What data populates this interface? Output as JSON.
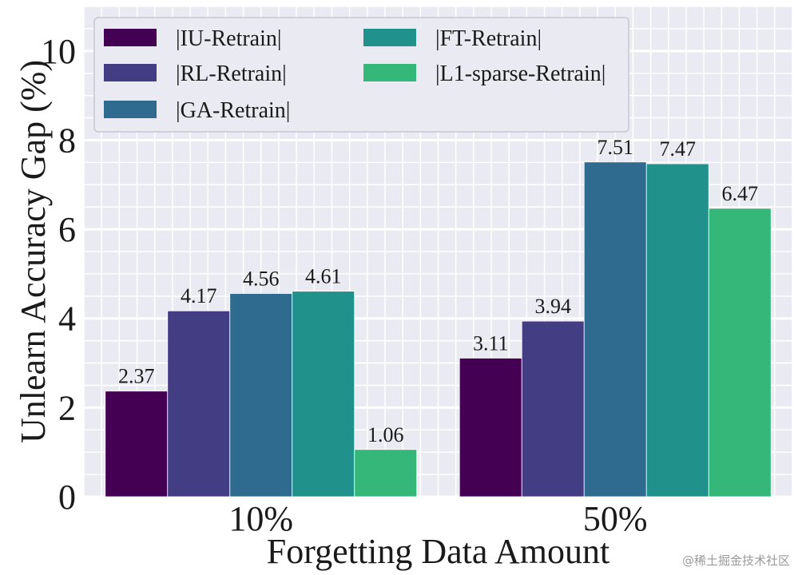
{
  "chart_data": {
    "type": "bar",
    "categories": [
      "10%",
      "50%"
    ],
    "series": [
      {
        "name": "|IU-Retrain|",
        "color": "#440154",
        "values": [
          2.37,
          3.11
        ]
      },
      {
        "name": "|RL-Retrain|",
        "color": "#433d84",
        "values": [
          4.17,
          3.94
        ]
      },
      {
        "name": "|GA-Retrain|",
        "color": "#2f6b8e",
        "values": [
          4.56,
          7.51
        ]
      },
      {
        "name": "|FT-Retrain|",
        "color": "#21918c",
        "values": [
          4.61,
          7.47
        ]
      },
      {
        "name": "|L1-sparse-Retrain|",
        "color": "#35b779",
        "values": [
          1.06,
          6.47
        ]
      }
    ],
    "value_labels": [
      [
        "2.37",
        "3.11"
      ],
      [
        "4.17",
        "3.94"
      ],
      [
        "4.56",
        "7.51"
      ],
      [
        "4.61",
        "7.47"
      ],
      [
        "1.06",
        "6.47"
      ]
    ],
    "xlabel": "Forgetting Data Amount",
    "ylabel": "Unlearn Accuracy Gap (%)",
    "ylim": [
      0,
      11
    ],
    "yticks": [
      0,
      2,
      4,
      6,
      8,
      10
    ],
    "ytick_labels": [
      "0",
      "2",
      "4",
      "6",
      "8",
      "10"
    ],
    "grid": true,
    "legend_position": "top-left",
    "background_color": "#eaeaf2",
    "grid_color": "#ffffff"
  },
  "watermark": "@稀土掘金技术社区"
}
